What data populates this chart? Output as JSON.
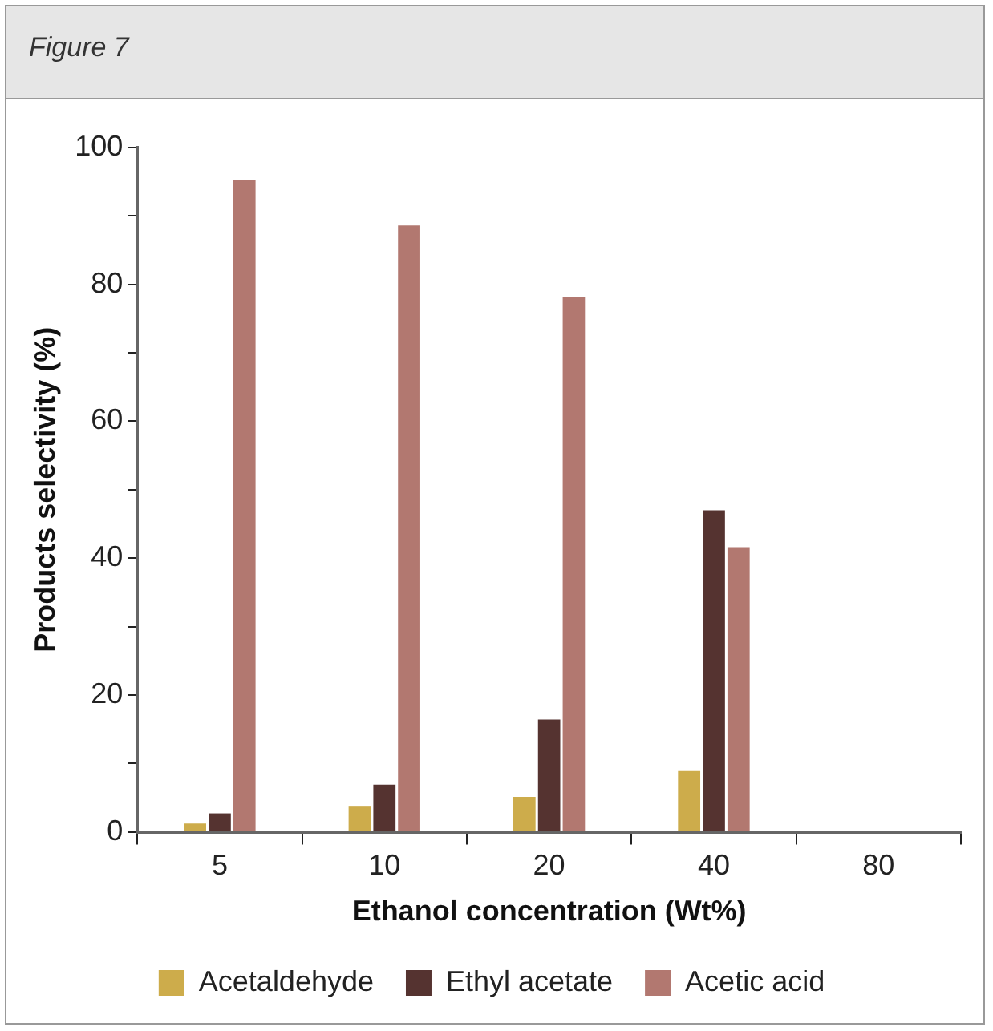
{
  "chart_data": {
    "type": "bar",
    "title": "Figure 7",
    "xlabel": "Ethanol concentration (Wt%)",
    "ylabel": "Products selectivity (%)",
    "categories": [
      "5",
      "10",
      "20",
      "40",
      "80"
    ],
    "series": [
      {
        "name": "Acetaldehyde",
        "color": "#cdac4b",
        "values": [
          1.2,
          3.8,
          5.1,
          8.9,
          null
        ]
      },
      {
        "name": "Ethyl acetate",
        "color": "#553330",
        "values": [
          2.7,
          6.9,
          16.4,
          47.0,
          null
        ]
      },
      {
        "name": "Acetic acid",
        "color": "#b27870",
        "values": [
          95.3,
          88.6,
          78.1,
          41.6,
          null
        ]
      }
    ],
    "ylim": [
      0,
      100
    ],
    "yticks": [
      0,
      {
        "value": 10,
        "label": null
      },
      20,
      {
        "value": 30,
        "label": null
      },
      40,
      {
        "value": 50,
        "label": null
      },
      60,
      {
        "value": 70,
        "label": null
      },
      80,
      {
        "value": 90,
        "label": null
      },
      100
    ],
    "grid": false,
    "legend": "bottom"
  }
}
